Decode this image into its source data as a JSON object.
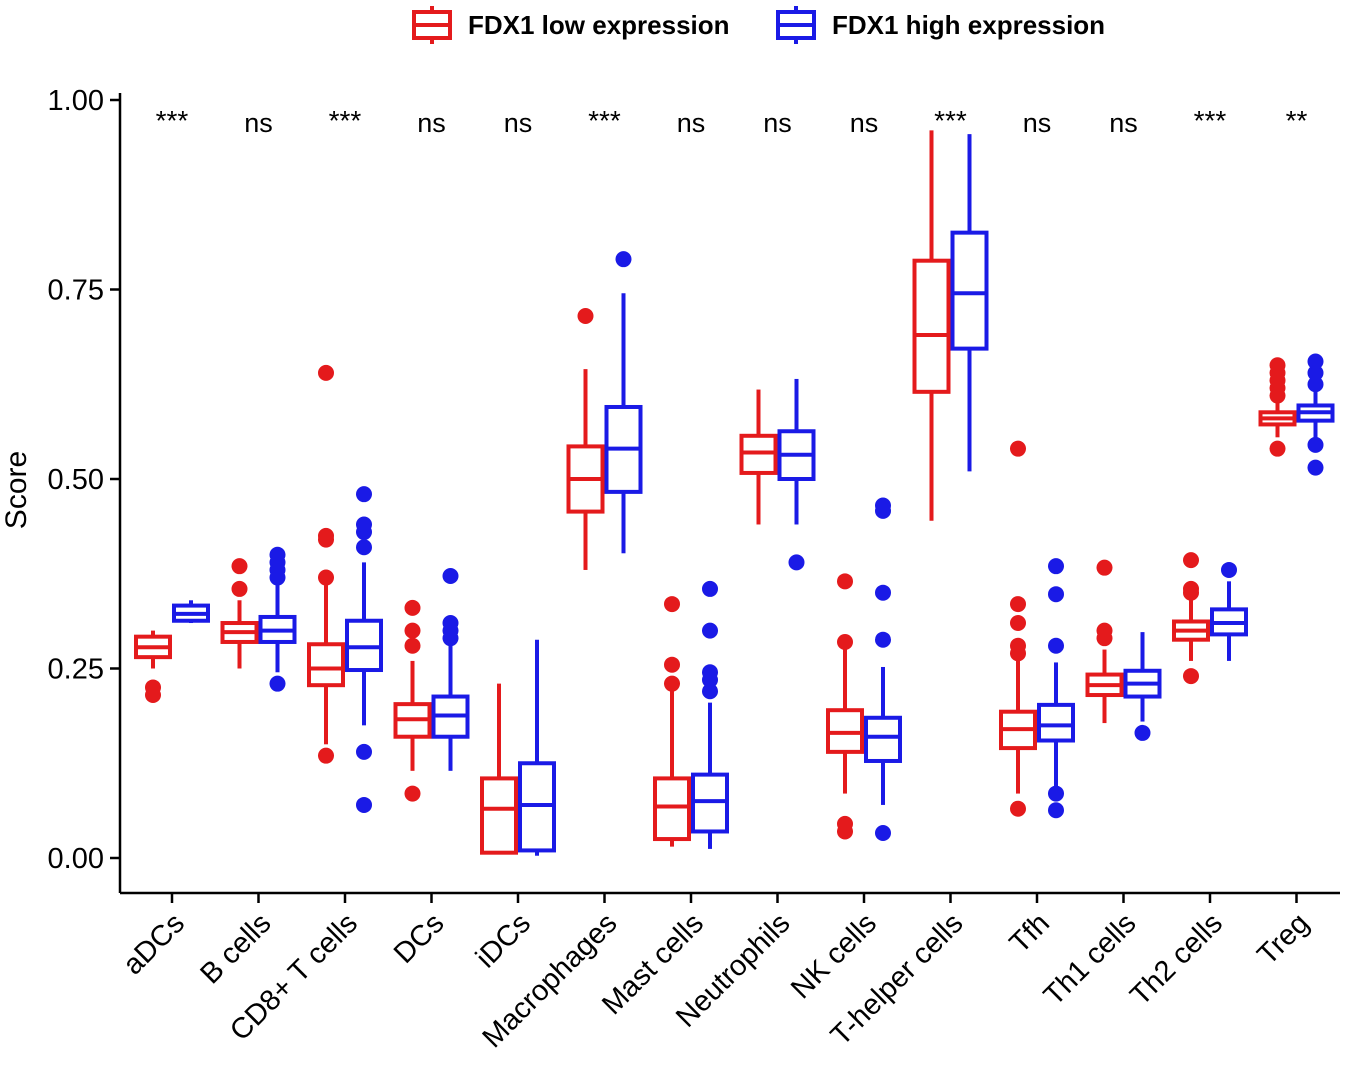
{
  "chart_data": {
    "type": "boxplot",
    "title": "",
    "xlabel": "",
    "ylabel": "Score",
    "ylim": [
      0,
      1
    ],
    "yticks": [
      0.0,
      0.25,
      0.5,
      0.75,
      1.0
    ],
    "ytick_labels": [
      "0.00",
      "0.25",
      "0.50",
      "0.75",
      "1.00"
    ],
    "legend_position": "top",
    "categories": [
      "aDCs",
      "B cells",
      "CD8+ T cells",
      "DCs",
      "iDCs",
      "Macrophages",
      "Mast cells",
      "Neutrophils",
      "NK cells",
      "T-helper cells",
      "Tfh",
      "Th1 cells",
      "Th2 cells",
      "Treg"
    ],
    "significance": [
      "***",
      "ns",
      "***",
      "ns",
      "ns",
      "***",
      "ns",
      "ns",
      "ns",
      "***",
      "ns",
      "ns",
      "***",
      "**"
    ],
    "series": [
      {
        "name": "FDX1 low expression",
        "color": "#e41a1c",
        "boxes": [
          {
            "whisker_low": 0.25,
            "q1": 0.265,
            "median": 0.278,
            "q3": 0.292,
            "whisker_high": 0.3,
            "outliers": [
              0.225,
              0.215
            ]
          },
          {
            "whisker_low": 0.25,
            "q1": 0.285,
            "median": 0.298,
            "q3": 0.31,
            "whisker_high": 0.34,
            "outliers": [
              0.355,
              0.385
            ]
          },
          {
            "whisker_low": 0.15,
            "q1": 0.228,
            "median": 0.25,
            "q3": 0.282,
            "whisker_high": 0.36,
            "outliers": [
              0.135,
              0.37,
              0.42,
              0.425,
              0.64
            ]
          },
          {
            "whisker_low": 0.115,
            "q1": 0.16,
            "median": 0.183,
            "q3": 0.203,
            "whisker_high": 0.26,
            "outliers": [
              0.085,
              0.28,
              0.3,
              0.33
            ]
          },
          {
            "whisker_low": 0.005,
            "q1": 0.007,
            "median": 0.065,
            "q3": 0.105,
            "whisker_high": 0.23,
            "outliers": []
          },
          {
            "whisker_low": 0.38,
            "q1": 0.457,
            "median": 0.5,
            "q3": 0.543,
            "whisker_high": 0.645,
            "outliers": [
              0.715
            ]
          },
          {
            "whisker_low": 0.015,
            "q1": 0.025,
            "median": 0.068,
            "q3": 0.105,
            "whisker_high": 0.22,
            "outliers": [
              0.23,
              0.255,
              0.335
            ]
          },
          {
            "whisker_low": 0.44,
            "q1": 0.508,
            "median": 0.535,
            "q3": 0.557,
            "whisker_high": 0.618,
            "outliers": []
          },
          {
            "whisker_low": 0.085,
            "q1": 0.14,
            "median": 0.165,
            "q3": 0.195,
            "whisker_high": 0.28,
            "outliers": [
              0.035,
              0.045,
              0.285,
              0.365
            ]
          },
          {
            "whisker_low": 0.445,
            "q1": 0.615,
            "median": 0.69,
            "q3": 0.788,
            "whisker_high": 0.96,
            "outliers": []
          },
          {
            "whisker_low": 0.085,
            "q1": 0.145,
            "median": 0.17,
            "q3": 0.193,
            "whisker_high": 0.26,
            "outliers": [
              0.065,
              0.27,
              0.28,
              0.31,
              0.335,
              0.54
            ]
          },
          {
            "whisker_low": 0.178,
            "q1": 0.215,
            "median": 0.228,
            "q3": 0.242,
            "whisker_high": 0.275,
            "outliers": [
              0.29,
              0.3,
              0.383
            ]
          },
          {
            "whisker_low": 0.26,
            "q1": 0.288,
            "median": 0.3,
            "q3": 0.312,
            "whisker_high": 0.34,
            "outliers": [
              0.24,
              0.35,
              0.355,
              0.393
            ]
          },
          {
            "whisker_low": 0.555,
            "q1": 0.572,
            "median": 0.58,
            "q3": 0.588,
            "whisker_high": 0.6,
            "outliers": [
              0.54,
              0.61,
              0.62,
              0.63,
              0.64,
              0.65
            ]
          }
        ]
      },
      {
        "name": "FDX1 high expression",
        "color": "#1a1ae6",
        "boxes": [
          {
            "whisker_low": 0.31,
            "q1": 0.313,
            "median": 0.322,
            "q3": 0.333,
            "whisker_high": 0.34,
            "outliers": []
          },
          {
            "whisker_low": 0.245,
            "q1": 0.285,
            "median": 0.3,
            "q3": 0.318,
            "whisker_high": 0.36,
            "outliers": [
              0.23,
              0.37,
              0.38,
              0.39,
              0.4
            ]
          },
          {
            "whisker_low": 0.175,
            "q1": 0.248,
            "median": 0.278,
            "q3": 0.313,
            "whisker_high": 0.39,
            "outliers": [
              0.07,
              0.14,
              0.41,
              0.43,
              0.44,
              0.48
            ]
          },
          {
            "whisker_low": 0.115,
            "q1": 0.16,
            "median": 0.188,
            "q3": 0.213,
            "whisker_high": 0.28,
            "outliers": [
              0.29,
              0.3,
              0.31,
              0.372
            ]
          },
          {
            "whisker_low": 0.003,
            "q1": 0.01,
            "median": 0.07,
            "q3": 0.125,
            "whisker_high": 0.288,
            "outliers": []
          },
          {
            "whisker_low": 0.402,
            "q1": 0.483,
            "median": 0.54,
            "q3": 0.595,
            "whisker_high": 0.745,
            "outliers": [
              0.79
            ]
          },
          {
            "whisker_low": 0.012,
            "q1": 0.035,
            "median": 0.075,
            "q3": 0.11,
            "whisker_high": 0.205,
            "outliers": [
              0.22,
              0.235,
              0.245,
              0.3,
              0.355
            ]
          },
          {
            "whisker_low": 0.44,
            "q1": 0.5,
            "median": 0.532,
            "q3": 0.563,
            "whisker_high": 0.632,
            "outliers": [
              0.39
            ]
          },
          {
            "whisker_low": 0.07,
            "q1": 0.128,
            "median": 0.16,
            "q3": 0.185,
            "whisker_high": 0.252,
            "outliers": [
              0.033,
              0.288,
              0.35,
              0.458,
              0.465
            ]
          },
          {
            "whisker_low": 0.51,
            "q1": 0.672,
            "median": 0.745,
            "q3": 0.825,
            "whisker_high": 0.955,
            "outliers": []
          },
          {
            "whisker_low": 0.085,
            "q1": 0.155,
            "median": 0.175,
            "q3": 0.202,
            "whisker_high": 0.258,
            "outliers": [
              0.063,
              0.085,
              0.28,
              0.348,
              0.385
            ]
          },
          {
            "whisker_low": 0.18,
            "q1": 0.213,
            "median": 0.23,
            "q3": 0.247,
            "whisker_high": 0.298,
            "outliers": [
              0.165
            ]
          },
          {
            "whisker_low": 0.26,
            "q1": 0.295,
            "median": 0.31,
            "q3": 0.328,
            "whisker_high": 0.365,
            "outliers": [
              0.38
            ]
          },
          {
            "whisker_low": 0.55,
            "q1": 0.577,
            "median": 0.588,
            "q3": 0.597,
            "whisker_high": 0.615,
            "outliers": [
              0.515,
              0.545,
              0.625,
              0.64,
              0.655
            ]
          }
        ]
      }
    ]
  }
}
